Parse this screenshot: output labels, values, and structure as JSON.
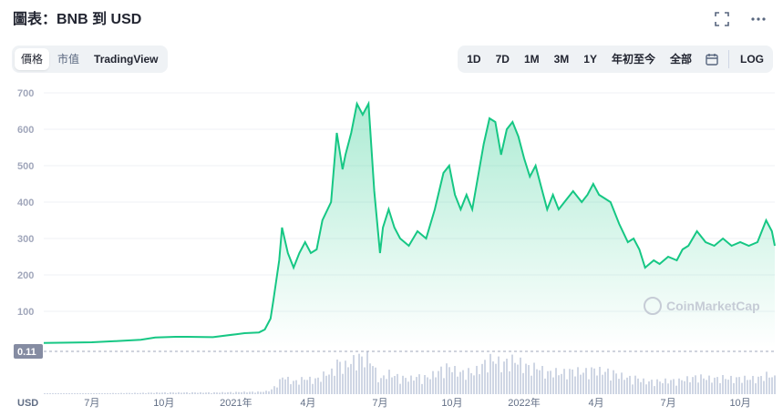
{
  "header": {
    "title": "圖表：BNB 到 USD",
    "expand_icon": "expand-icon",
    "more_icon": "more-horizontal-icon"
  },
  "view_tabs": [
    {
      "label": "價格",
      "active": true
    },
    {
      "label": "市值",
      "active": false
    },
    {
      "label": "TradingView",
      "active": false,
      "bold": true
    }
  ],
  "range_tabs": [
    {
      "label": "1D"
    },
    {
      "label": "7D"
    },
    {
      "label": "1M"
    },
    {
      "label": "3M"
    },
    {
      "label": "1Y"
    },
    {
      "label": "年初至今"
    },
    {
      "label": "全部"
    }
  ],
  "calendar_icon": "calendar-icon",
  "log_label": "LOG",
  "colors": {
    "line": "#16c784",
    "fill_top": "#16c784",
    "volume": "#cfd6e4",
    "marker_bg": "#858ca2"
  },
  "chart_data": {
    "type": "area",
    "ylim": [
      0,
      700
    ],
    "y_ticks": [
      100,
      200,
      300,
      400,
      500,
      600,
      700
    ],
    "x_ticks": [
      "7月",
      "10月",
      "2021年",
      "4月",
      "7月",
      "10月",
      "2022年",
      "4月",
      "7月",
      "10月"
    ],
    "unit_label": "USD",
    "current_marker": "0.11",
    "watermark": "CoinMarketCap",
    "series": [
      {
        "values": [
          [
            2020.333,
            13
          ],
          [
            2020.42,
            14
          ],
          [
            2020.5,
            15
          ],
          [
            2020.58,
            18
          ],
          [
            2020.67,
            22
          ],
          [
            2020.72,
            28
          ],
          [
            2020.79,
            30
          ],
          [
            2020.83,
            30
          ],
          [
            2020.92,
            29
          ],
          [
            2021.0,
            37
          ],
          [
            2021.03,
            40
          ],
          [
            2021.08,
            42
          ],
          [
            2021.1,
            50
          ],
          [
            2021.12,
            80
          ],
          [
            2021.13,
            130
          ],
          [
            2021.15,
            240
          ],
          [
            2021.16,
            330
          ],
          [
            2021.18,
            260
          ],
          [
            2021.2,
            220
          ],
          [
            2021.22,
            260
          ],
          [
            2021.24,
            290
          ],
          [
            2021.26,
            260
          ],
          [
            2021.28,
            270
          ],
          [
            2021.3,
            350
          ],
          [
            2021.33,
            400
          ],
          [
            2021.35,
            590
          ],
          [
            2021.37,
            490
          ],
          [
            2021.38,
            530
          ],
          [
            2021.4,
            590
          ],
          [
            2021.42,
            670
          ],
          [
            2021.44,
            640
          ],
          [
            2021.46,
            670
          ],
          [
            2021.48,
            430
          ],
          [
            2021.5,
            260
          ],
          [
            2021.51,
            330
          ],
          [
            2021.53,
            380
          ],
          [
            2021.55,
            330
          ],
          [
            2021.57,
            300
          ],
          [
            2021.6,
            280
          ],
          [
            2021.63,
            320
          ],
          [
            2021.66,
            300
          ],
          [
            2021.69,
            380
          ],
          [
            2021.72,
            480
          ],
          [
            2021.74,
            500
          ],
          [
            2021.76,
            420
          ],
          [
            2021.78,
            380
          ],
          [
            2021.8,
            420
          ],
          [
            2021.82,
            380
          ],
          [
            2021.84,
            470
          ],
          [
            2021.86,
            560
          ],
          [
            2021.88,
            630
          ],
          [
            2021.9,
            620
          ],
          [
            2021.92,
            530
          ],
          [
            2021.94,
            600
          ],
          [
            2021.96,
            620
          ],
          [
            2021.98,
            580
          ],
          [
            2022.0,
            520
          ],
          [
            2022.02,
            470
          ],
          [
            2022.04,
            500
          ],
          [
            2022.06,
            440
          ],
          [
            2022.08,
            380
          ],
          [
            2022.1,
            420
          ],
          [
            2022.12,
            380
          ],
          [
            2022.14,
            400
          ],
          [
            2022.17,
            430
          ],
          [
            2022.2,
            400
          ],
          [
            2022.22,
            420
          ],
          [
            2022.24,
            450
          ],
          [
            2022.26,
            420
          ],
          [
            2022.28,
            410
          ],
          [
            2022.3,
            400
          ],
          [
            2022.33,
            340
          ],
          [
            2022.36,
            290
          ],
          [
            2022.38,
            300
          ],
          [
            2022.4,
            270
          ],
          [
            2022.42,
            220
          ],
          [
            2022.45,
            240
          ],
          [
            2022.47,
            230
          ],
          [
            2022.5,
            250
          ],
          [
            2022.53,
            240
          ],
          [
            2022.55,
            270
          ],
          [
            2022.57,
            280
          ],
          [
            2022.6,
            320
          ],
          [
            2022.63,
            290
          ],
          [
            2022.66,
            280
          ],
          [
            2022.69,
            300
          ],
          [
            2022.72,
            280
          ],
          [
            2022.75,
            290
          ],
          [
            2022.78,
            280
          ],
          [
            2022.81,
            290
          ],
          [
            2022.84,
            350
          ],
          [
            2022.86,
            320
          ],
          [
            2022.87,
            280
          ]
        ]
      }
    ]
  }
}
